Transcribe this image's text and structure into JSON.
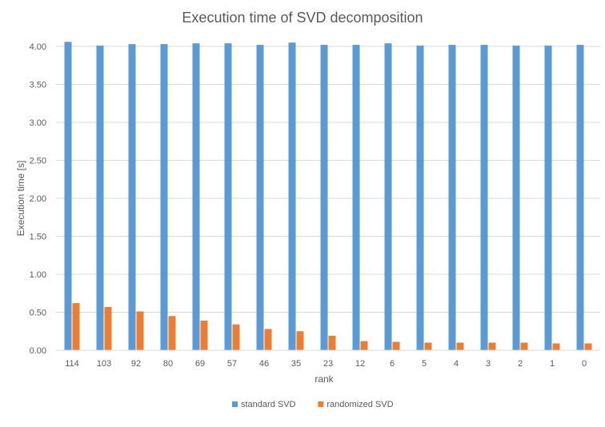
{
  "chart_data": {
    "type": "bar",
    "title": "Execution time of SVD decomposition",
    "xlabel": "rank",
    "ylabel": "Execution time  [s]",
    "categories": [
      "114",
      "103",
      "92",
      "80",
      "69",
      "57",
      "46",
      "35",
      "23",
      "12",
      "6",
      "5",
      "4",
      "3",
      "2",
      "1",
      "0"
    ],
    "series": [
      {
        "name": "standard SVD",
        "color": "#5b9bd5",
        "values": [
          4.06,
          4.01,
          4.03,
          4.03,
          4.04,
          4.04,
          4.02,
          4.05,
          4.02,
          4.02,
          4.04,
          4.01,
          4.02,
          4.02,
          4.01,
          4.01,
          4.02
        ]
      },
      {
        "name": "randomized SVD",
        "color": "#ed7d31",
        "values": [
          0.62,
          0.57,
          0.51,
          0.45,
          0.39,
          0.34,
          0.28,
          0.25,
          0.19,
          0.12,
          0.11,
          0.1,
          0.1,
          0.1,
          0.1,
          0.09,
          0.09
        ]
      }
    ],
    "ylim": [
      0,
      4.0
    ],
    "yticks": [
      "0.00",
      "0.50",
      "1.00",
      "1.50",
      "2.00",
      "2.50",
      "3.00",
      "3.50",
      "4.00"
    ],
    "grid": true,
    "legend_position": "bottom",
    "colors": {
      "title": "#595959",
      "axis_text": "#595959",
      "grid": "#d9d9d9"
    }
  }
}
